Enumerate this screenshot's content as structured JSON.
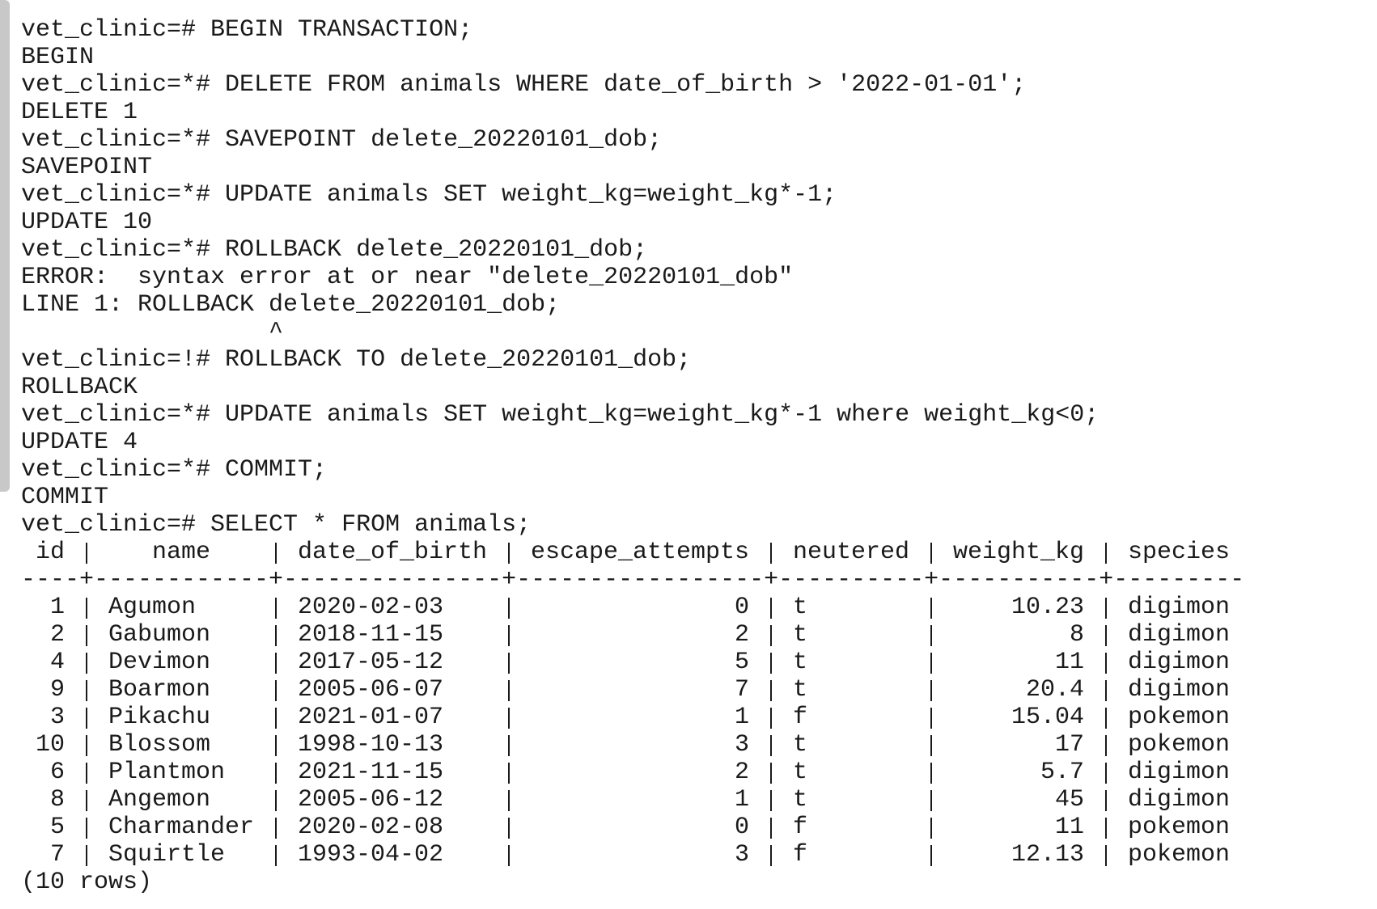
{
  "lines": [
    "vet_clinic=# BEGIN TRANSACTION;",
    "BEGIN",
    "vet_clinic=*# DELETE FROM animals WHERE date_of_birth > '2022-01-01';",
    "DELETE 1",
    "vet_clinic=*# SAVEPOINT delete_20220101_dob;",
    "SAVEPOINT",
    "vet_clinic=*# UPDATE animals SET weight_kg=weight_kg*-1;",
    "UPDATE 10",
    "vet_clinic=*# ROLLBACK delete_20220101_dob;",
    "ERROR:  syntax error at or near \"delete_20220101_dob\"",
    "LINE 1: ROLLBACK delete_20220101_dob;",
    "                 ^",
    "vet_clinic=!# ROLLBACK TO delete_20220101_dob;",
    "ROLLBACK",
    "vet_clinic=*# UPDATE animals SET weight_kg=weight_kg*-1 where weight_kg<0;",
    "UPDATE 4",
    "vet_clinic=*# COMMIT;",
    "COMMIT",
    "vet_clinic=# SELECT * FROM animals;"
  ],
  "table": {
    "columns": [
      "id",
      "name",
      "date_of_birth",
      "escape_attempts",
      "neutered",
      "weight_kg",
      "species"
    ],
    "separator": "----+------------+---------------+-----------------+----------+-----------+---------",
    "rows": [
      [
        "1",
        "Agumon",
        "2020-02-03",
        "0",
        "t",
        "10.23",
        "digimon"
      ],
      [
        "2",
        "Gabumon",
        "2018-11-15",
        "2",
        "t",
        "8",
        "digimon"
      ],
      [
        "4",
        "Devimon",
        "2017-05-12",
        "5",
        "t",
        "11",
        "digimon"
      ],
      [
        "9",
        "Boarmon",
        "2005-06-07",
        "7",
        "t",
        "20.4",
        "digimon"
      ],
      [
        "3",
        "Pikachu",
        "2021-01-07",
        "1",
        "f",
        "15.04",
        "pokemon"
      ],
      [
        "10",
        "Blossom",
        "1998-10-13",
        "3",
        "t",
        "17",
        "pokemon"
      ],
      [
        "6",
        "Plantmon",
        "2021-11-15",
        "2",
        "t",
        "5.7",
        "digimon"
      ],
      [
        "8",
        "Angemon",
        "2005-06-12",
        "1",
        "t",
        "45",
        "digimon"
      ],
      [
        "5",
        "Charmander",
        "2020-02-08",
        "0",
        "f",
        "11",
        "pokemon"
      ],
      [
        "7",
        "Squirtle",
        "1993-04-02",
        "3",
        "f",
        "12.13",
        "pokemon"
      ]
    ],
    "footer": "(10 rows)"
  }
}
